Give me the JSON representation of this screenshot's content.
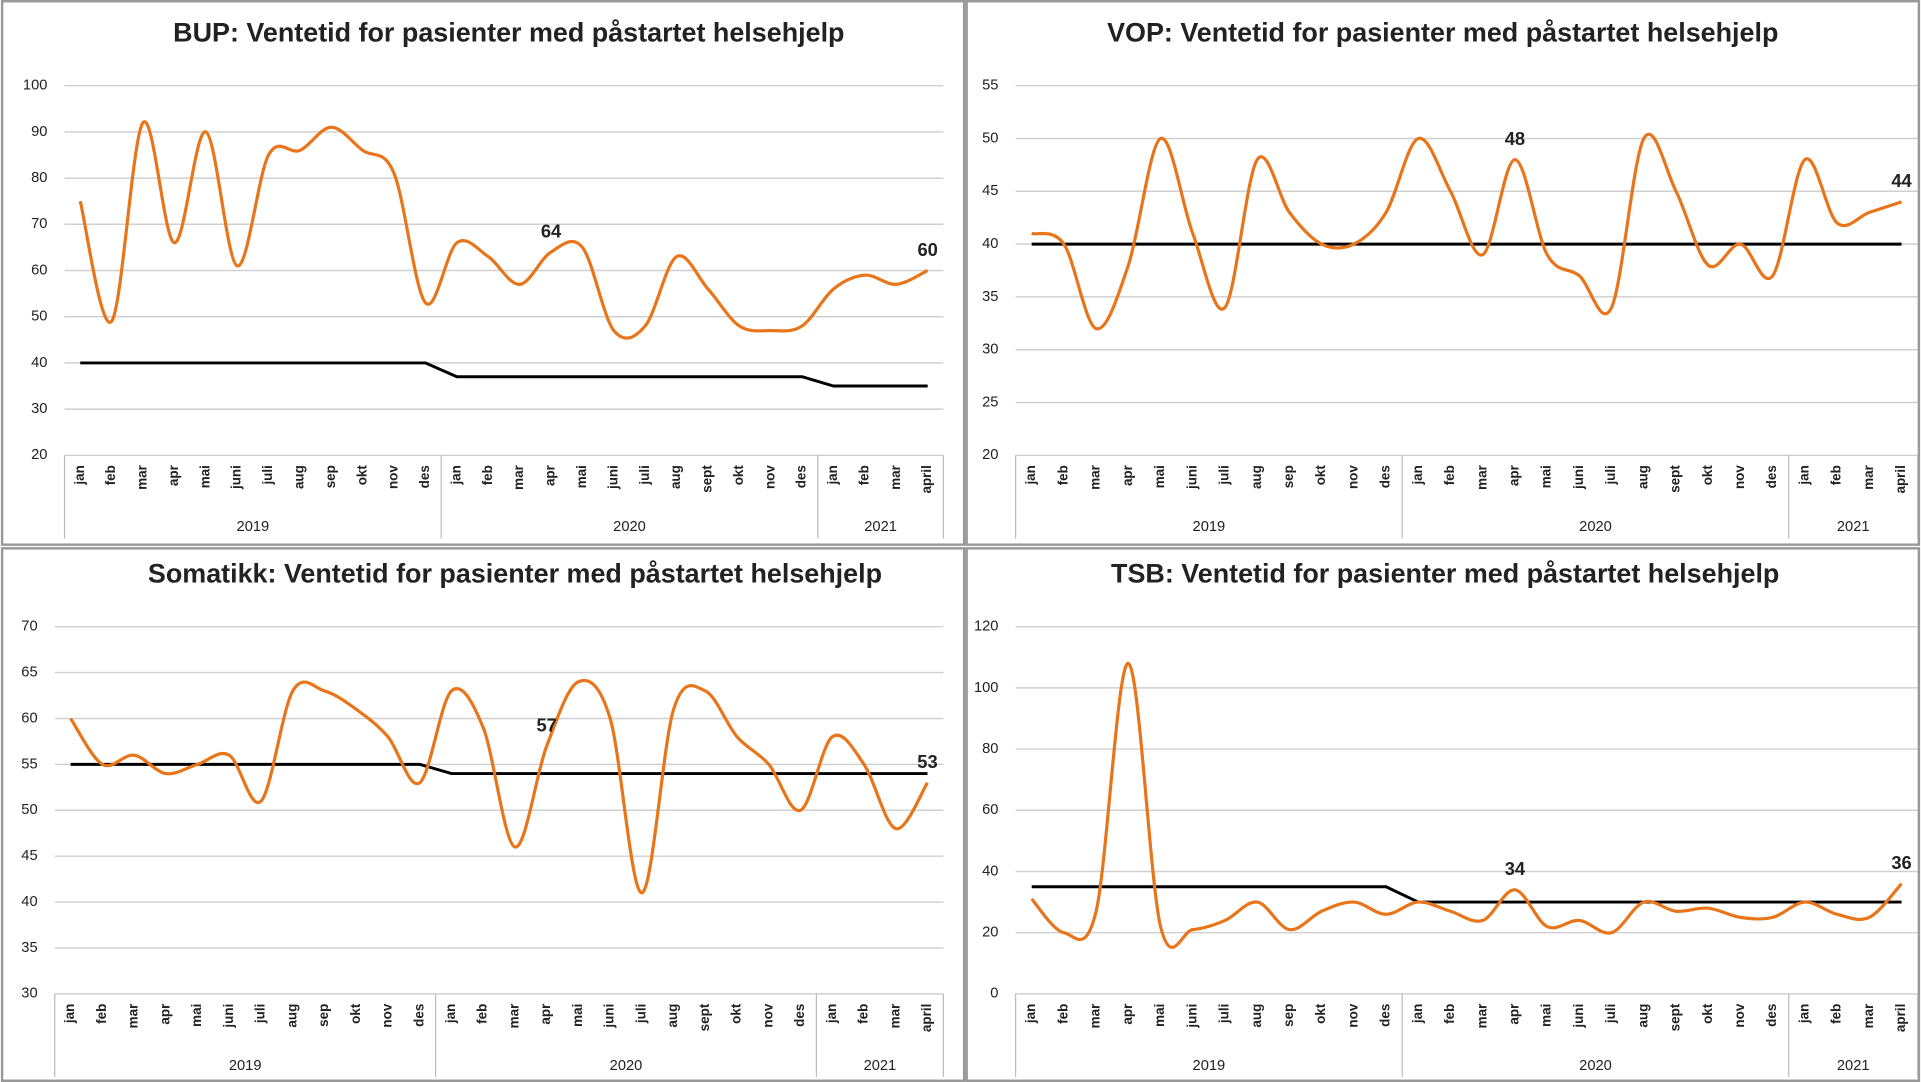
{
  "chart_data": [
    {
      "type": "line",
      "title": "BUP: Ventetid for pasienter med påstartet helsehjelp",
      "category_groups": [
        {
          "name": "2019",
          "categories": [
            "jan",
            "feb",
            "mar",
            "apr",
            "mai",
            "juni",
            "juli",
            "aug",
            "sep",
            "okt",
            "nov",
            "des"
          ]
        },
        {
          "name": "2020",
          "categories": [
            "jan",
            "feb",
            "mar",
            "apr",
            "mai",
            "juni",
            "juli",
            "aug",
            "sept",
            "okt",
            "nov",
            "des"
          ]
        },
        {
          "name": "2021",
          "categories": [
            "jan",
            "feb",
            "mar",
            "april"
          ]
        }
      ],
      "series": [
        {
          "color": "#e8751a",
          "values": [
            75,
            49,
            92,
            66,
            90,
            61,
            85,
            86,
            91,
            86,
            81,
            53,
            66,
            63,
            57,
            64,
            65,
            47,
            48,
            63,
            56,
            48,
            47,
            48,
            56,
            59,
            57,
            60
          ],
          "show_value_at": [
            15,
            27
          ]
        },
        {
          "color": "#000000",
          "values": [
            40,
            40,
            40,
            40,
            40,
            40,
            40,
            40,
            40,
            40,
            40,
            40,
            37,
            37,
            37,
            37,
            37,
            37,
            37,
            37,
            37,
            37,
            37,
            37,
            35,
            35,
            35,
            35
          ]
        }
      ],
      "ylim": [
        20,
        100
      ],
      "yticks": [
        20,
        30,
        40,
        50,
        60,
        70,
        80,
        90,
        100
      ],
      "grid": true
    },
    {
      "type": "line",
      "title": "VOP: Ventetid for pasienter med påstartet helsehjelp",
      "category_groups": [
        {
          "name": "2019",
          "categories": [
            "jan",
            "feb",
            "mar",
            "apr",
            "mai",
            "juni",
            "juli",
            "aug",
            "sep",
            "okt",
            "nov",
            "des"
          ]
        },
        {
          "name": "2020",
          "categories": [
            "jan",
            "feb",
            "mar",
            "apr",
            "mai",
            "juni",
            "juli",
            "aug",
            "sept",
            "okt",
            "nov",
            "des"
          ]
        },
        {
          "name": "2021",
          "categories": [
            "jan",
            "feb",
            "mar",
            "april"
          ]
        }
      ],
      "series": [
        {
          "color": "#e8751a",
          "values": [
            41,
            40,
            32,
            38,
            50,
            41,
            34,
            48,
            43,
            40,
            40,
            43,
            50,
            45,
            39,
            48,
            39,
            37,
            34,
            50,
            45,
            38,
            40,
            37,
            48,
            42,
            43,
            44
          ],
          "show_value_at": [
            15,
            27
          ]
        },
        {
          "color": "#000000",
          "values": [
            40,
            40,
            40,
            40,
            40,
            40,
            40,
            40,
            40,
            40,
            40,
            40,
            40,
            40,
            40,
            40,
            40,
            40,
            40,
            40,
            40,
            40,
            40,
            40,
            40,
            40,
            40,
            40
          ]
        }
      ],
      "ylim": [
        20,
        55
      ],
      "yticks": [
        20,
        25,
        30,
        35,
        40,
        45,
        50,
        55
      ],
      "grid": true
    },
    {
      "type": "line",
      "title": "Somatikk: Ventetid for pasienter med påstartet helsehjelp",
      "category_groups": [
        {
          "name": "2019",
          "categories": [
            "jan",
            "feb",
            "mar",
            "apr",
            "mai",
            "juni",
            "juli",
            "aug",
            "sep",
            "okt",
            "nov",
            "des"
          ]
        },
        {
          "name": "2020",
          "categories": [
            "jan",
            "feb",
            "mar",
            "apr",
            "mai",
            "juni",
            "juli",
            "aug",
            "sept",
            "okt",
            "nov",
            "des"
          ]
        },
        {
          "name": "2021",
          "categories": [
            "jan",
            "feb",
            "mar",
            "april"
          ]
        }
      ],
      "series": [
        {
          "color": "#e8751a",
          "values": [
            60,
            55,
            56,
            54,
            55,
            56,
            51,
            63,
            63,
            61,
            58,
            53,
            63,
            59,
            46,
            57,
            64,
            60,
            41,
            61,
            63,
            58,
            55,
            50,
            58,
            55,
            48,
            53
          ],
          "show_value_at": [
            15,
            27
          ]
        },
        {
          "color": "#000000",
          "values": [
            55,
            55,
            55,
            55,
            55,
            55,
            55,
            55,
            55,
            55,
            55,
            55,
            54,
            54,
            54,
            54,
            54,
            54,
            54,
            54,
            54,
            54,
            54,
            54,
            54,
            54,
            54,
            54
          ]
        }
      ],
      "ylim": [
        30,
        70
      ],
      "yticks": [
        30,
        35,
        40,
        45,
        50,
        55,
        60,
        65,
        70
      ],
      "grid": true
    },
    {
      "type": "line",
      "title": "TSB: Ventetid for pasienter med påstartet helsehjelp",
      "category_groups": [
        {
          "name": "2019",
          "categories": [
            "jan",
            "feb",
            "mar",
            "apr",
            "mai",
            "juni",
            "juli",
            "aug",
            "sep",
            "okt",
            "nov",
            "des"
          ]
        },
        {
          "name": "2020",
          "categories": [
            "jan",
            "feb",
            "mar",
            "apr",
            "mai",
            "juni",
            "juli",
            "aug",
            "sept",
            "okt",
            "nov",
            "des"
          ]
        },
        {
          "name": "2021",
          "categories": [
            "jan",
            "feb",
            "mar",
            "april"
          ]
        }
      ],
      "series": [
        {
          "color": "#e8751a",
          "values": [
            31,
            20,
            27,
            108,
            22,
            21,
            24,
            30,
            21,
            27,
            30,
            26,
            30,
            27,
            24,
            34,
            22,
            24,
            20,
            30,
            27,
            28,
            25,
            25,
            30,
            26,
            25,
            36
          ],
          "show_value_at": [
            15,
            27
          ]
        },
        {
          "color": "#000000",
          "values": [
            35,
            35,
            35,
            35,
            35,
            35,
            35,
            35,
            35,
            35,
            35,
            35,
            30,
            30,
            30,
            30,
            30,
            30,
            30,
            30,
            30,
            30,
            30,
            30,
            30,
            30,
            30,
            30
          ]
        }
      ],
      "ylim": [
        0,
        120
      ],
      "yticks": [
        0,
        20,
        40,
        60,
        80,
        100,
        120
      ],
      "grid": true
    }
  ]
}
